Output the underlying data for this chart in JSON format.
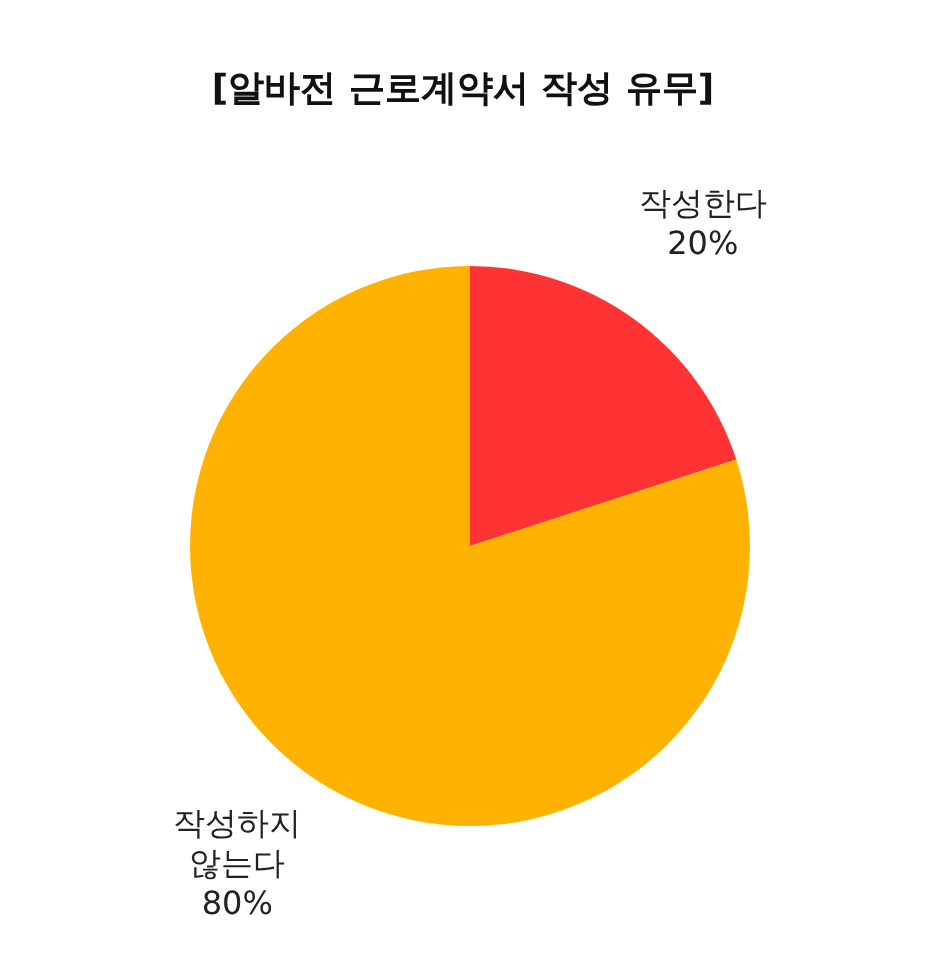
{
  "chart_data": {
    "type": "pie",
    "title": "[알바전 근로계약서 작성 유무]",
    "categories": [
      "작성한다",
      "작성하지 않는다"
    ],
    "values": [
      20,
      80
    ],
    "colors": [
      "#ff3333",
      "#ffb300"
    ],
    "value_labels": [
      "20%",
      "80%"
    ]
  }
}
